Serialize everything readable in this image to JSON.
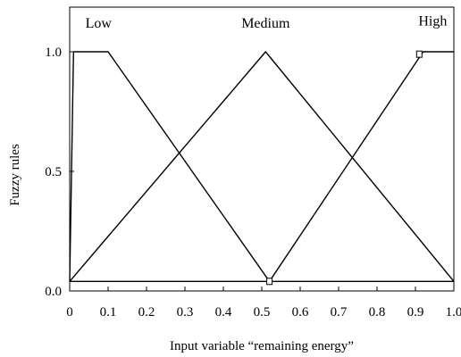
{
  "chart_data": {
    "type": "line",
    "xlabel": "Input variable “remaining energy”",
    "ylabel": "Fuzzy rules",
    "xlim": [
      0,
      1.0
    ],
    "ylim": [
      0.0,
      1.0
    ],
    "xticks": [
      "0",
      "0.1",
      "0.2",
      "0.3",
      "0.4",
      "0.5",
      "0.6",
      "0.7",
      "0.8",
      "0.9",
      "1.0"
    ],
    "yticks": [
      "0.0",
      "0.5",
      "1.0"
    ],
    "grid": false,
    "series": [
      {
        "name": "Low",
        "x": [
          0.0,
          0.01,
          0.1,
          0.52,
          1.0
        ],
        "y": [
          0.04,
          1.0,
          1.0,
          0.04,
          0.04
        ]
      },
      {
        "name": "Medium",
        "x": [
          0.0,
          0.51,
          1.0
        ],
        "y": [
          0.04,
          1.0,
          0.04
        ]
      },
      {
        "name": "High",
        "x": [
          0.0,
          0.52,
          0.92,
          1.0
        ],
        "y": [
          0.04,
          0.04,
          1.0,
          1.0
        ]
      }
    ],
    "markers": [
      {
        "x": 0.52,
        "y": 0.04
      },
      {
        "x": 0.91,
        "y": 0.99
      }
    ]
  }
}
